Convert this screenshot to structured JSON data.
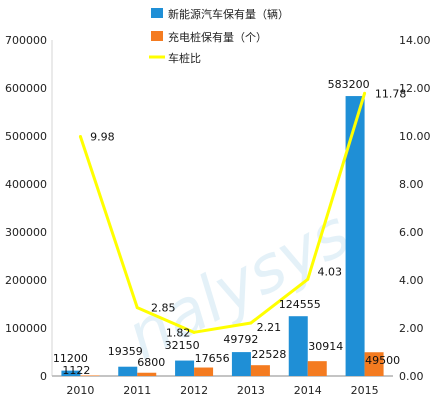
{
  "chart_data": {
    "type": "bar",
    "categories": [
      "2010",
      "2011",
      "2012",
      "2013",
      "2014",
      "2015"
    ],
    "series": [
      {
        "name": "新能源汽车保有量（辆）",
        "kind": "bar",
        "axis": "left",
        "color": "#1f8fd6",
        "values": [
          11200,
          19359,
          32150,
          49792,
          124555,
          583200
        ]
      },
      {
        "name": "充电桩保有量（个）",
        "kind": "bar",
        "axis": "left",
        "color": "#f47b20",
        "values": [
          1122,
          6800,
          17656,
          22528,
          30914,
          49500
        ]
      },
      {
        "name": "车桩比",
        "kind": "line",
        "axis": "right",
        "color": "#ffff00",
        "values": [
          9.98,
          2.85,
          1.82,
          2.21,
          4.03,
          11.78
        ]
      }
    ],
    "left_axis": {
      "range": [
        0,
        700000
      ],
      "ticks": [
        "0",
        "100000",
        "200000",
        "300000",
        "400000",
        "500000",
        "600000",
        "700000"
      ]
    },
    "right_axis": {
      "range": [
        0,
        14
      ],
      "ticks": [
        "0.00",
        "2.00",
        "4.00",
        "6.00",
        "8.00",
        "10.00",
        "12.00",
        "14.00"
      ]
    },
    "bar_labels_ev": [
      "11200",
      "19359",
      "32150",
      "49792",
      "124555",
      "583200"
    ],
    "bar_labels_pile": [
      "1122",
      "6800",
      "17656",
      "22528",
      "30914",
      "49500"
    ],
    "line_labels": [
      "9.98",
      "2.85",
      "1.82",
      "2.21",
      "4.03",
      "11.78"
    ],
    "legend_position": "top-center",
    "grid": false,
    "watermark": "nalysys"
  }
}
